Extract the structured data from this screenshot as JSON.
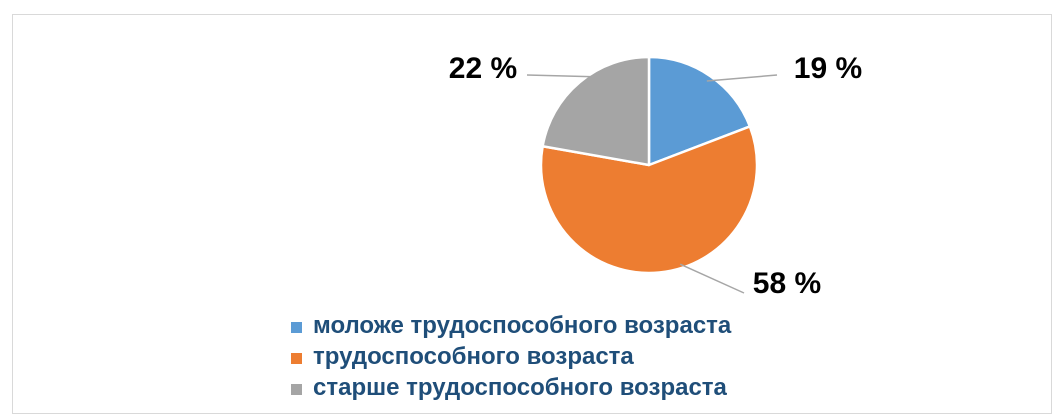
{
  "chart_data": {
    "type": "pie",
    "title": "",
    "slices": [
      {
        "name": "моложе трудоспособного возраста",
        "value": 19,
        "label": "19 %",
        "color": "#5b9bd5"
      },
      {
        "name": "трудоспособного возраста",
        "value": 58,
        "label": "58 %",
        "color": "#ed7d31"
      },
      {
        "name": "старше трудоспособного возраста",
        "value": 22,
        "label": "22 %",
        "color": "#a5a5a5"
      }
    ],
    "start_angle_deg": 0,
    "direction": "clockwise",
    "legend_position": "bottom"
  }
}
